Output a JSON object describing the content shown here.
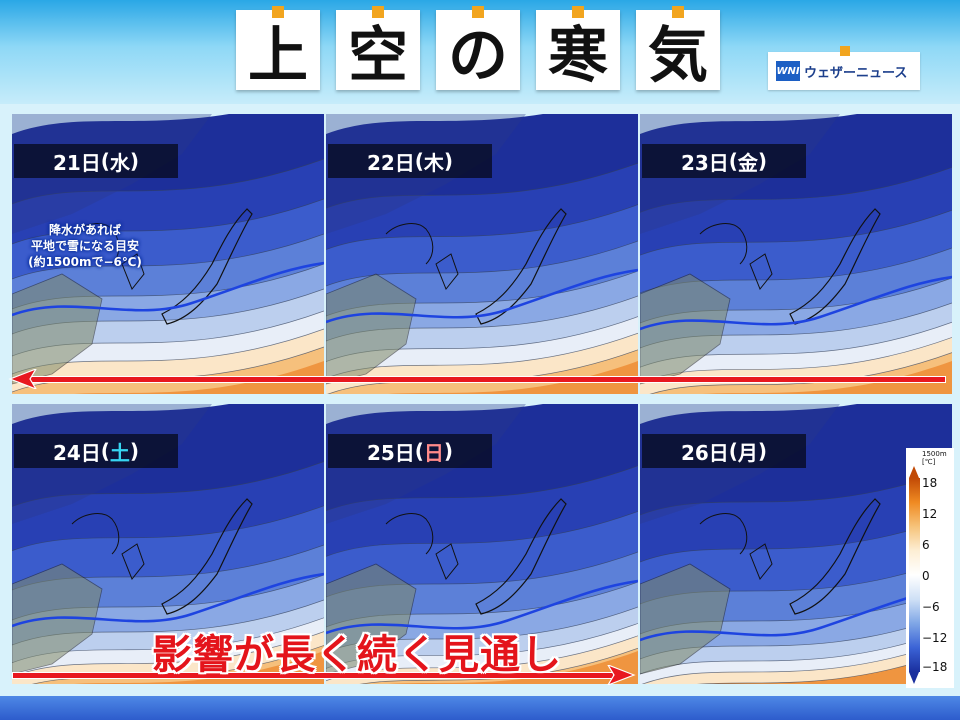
{
  "title": {
    "chars": [
      "上",
      "空",
      "の",
      "寒",
      "気"
    ]
  },
  "logo": {
    "mark": "WNI",
    "text": "ウェザーニュース"
  },
  "panels": [
    {
      "date": "21日",
      "paren_open": "(",
      "weekday": "水",
      "paren_close": ")"
    },
    {
      "date": "22日",
      "paren_open": "(",
      "weekday": "木",
      "paren_close": ")"
    },
    {
      "date": "23日",
      "paren_open": "(",
      "weekday": "金",
      "paren_close": ")"
    },
    {
      "date": "24日",
      "paren_open": "(",
      "weekday": "土",
      "paren_close": ")"
    },
    {
      "date": "25日",
      "paren_open": "(",
      "weekday": "日",
      "paren_close": ")"
    },
    {
      "date": "26日",
      "paren_open": "(",
      "weekday": "月",
      "paren_close": ")"
    }
  ],
  "annotation": {
    "line1": "降水があれば",
    "line2": "平地で雪になる目安",
    "line3": "(約1500mで−6℃)"
  },
  "bottom_caption": "影響が長く続く見通し",
  "legend": {
    "header_line1": "1500m",
    "header_line2": "[℃]",
    "ticks": [
      "18",
      "12",
      "6",
      "0",
      "−6",
      "−12",
      "−18"
    ]
  },
  "colors": {
    "accent_red": "#e4141b",
    "saturday": "#37d5f2",
    "sunday": "#ff8a8a",
    "isotherm": "#1e44e0"
  }
}
